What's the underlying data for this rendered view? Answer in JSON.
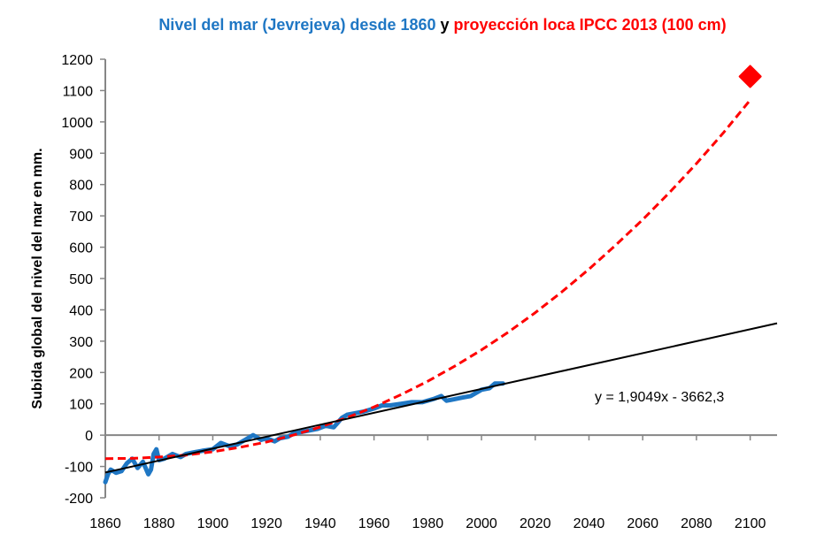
{
  "chart_data": {
    "type": "line",
    "title_parts": [
      {
        "text": "Nivel del mar (Jevrejeva) desde 1860",
        "color": "#1f77c4"
      },
      {
        "text": " y ",
        "color": "#000000"
      },
      {
        "text": "proyección loca IPCC 2013 (100 cm)",
        "color": "#ff0000"
      }
    ],
    "ylabel": "Subida global del nivel del mar  en mm.",
    "xlabel": "",
    "xlim": [
      1860,
      2110
    ],
    "ylim": [
      -200,
      1200
    ],
    "xticks": [
      1860,
      1880,
      1900,
      1920,
      1940,
      1960,
      1980,
      2000,
      2020,
      2040,
      2060,
      2080,
      2100
    ],
    "yticks": [
      -200,
      -100,
      0,
      100,
      200,
      300,
      400,
      500,
      600,
      700,
      800,
      900,
      1000,
      1100,
      1200
    ],
    "trend_label": "y = 1,9049x - 3662,3",
    "trend": {
      "slope": 1.9049,
      "intercept": -3662.3,
      "x_range": [
        1860,
        2110
      ],
      "color": "#000000"
    },
    "series": [
      {
        "name": "Jevrejeva",
        "color": "#1f77c4",
        "style": "solid",
        "x": [
          1860,
          1861,
          1862,
          1864,
          1866,
          1868,
          1870,
          1872,
          1874,
          1876,
          1877,
          1878,
          1879,
          1880,
          1882,
          1885,
          1888,
          1890,
          1893,
          1896,
          1900,
          1903,
          1906,
          1909,
          1912,
          1915,
          1918,
          1920,
          1923,
          1925,
          1928,
          1930,
          1933,
          1936,
          1939,
          1942,
          1945,
          1948,
          1950,
          1953,
          1956,
          1960,
          1963,
          1966,
          1970,
          1974,
          1978,
          1982,
          1985,
          1987,
          1990,
          1993,
          1996,
          2000,
          2003,
          2005,
          2008
        ],
        "y": [
          -150,
          -125,
          -110,
          -120,
          -115,
          -90,
          -75,
          -105,
          -85,
          -125,
          -110,
          -60,
          -45,
          -80,
          -75,
          -60,
          -70,
          -60,
          -55,
          -50,
          -45,
          -25,
          -35,
          -30,
          -15,
          0,
          -15,
          -10,
          -20,
          -10,
          -5,
          5,
          10,
          15,
          20,
          30,
          25,
          55,
          65,
          70,
          75,
          85,
          95,
          95,
          100,
          105,
          105,
          115,
          125,
          110,
          115,
          120,
          125,
          145,
          150,
          165,
          165
        ]
      },
      {
        "name": "IPCC 2013",
        "color": "#ff0000",
        "style": "dashed",
        "x": [
          1860,
          1870,
          1880,
          1890,
          1900,
          1910,
          1920,
          1930,
          1940,
          1950,
          1960,
          1970,
          1980,
          1990,
          2000,
          2010,
          2020,
          2030,
          2040,
          2050,
          2060,
          2070,
          2080,
          2090,
          2100
        ],
        "y": [
          -75,
          -74,
          -70,
          -64,
          -53,
          -39,
          -22,
          0,
          26,
          56,
          90,
          129,
          172,
          220,
          272,
          329,
          391,
          458,
          530,
          607,
          688,
          775,
          867,
          965,
          1070
        ]
      }
    ],
    "marker": {
      "name": "IPCC 2013 (100 cm)",
      "x": 2100,
      "y": 1145,
      "color": "#ff0000",
      "shape": "diamond"
    }
  }
}
